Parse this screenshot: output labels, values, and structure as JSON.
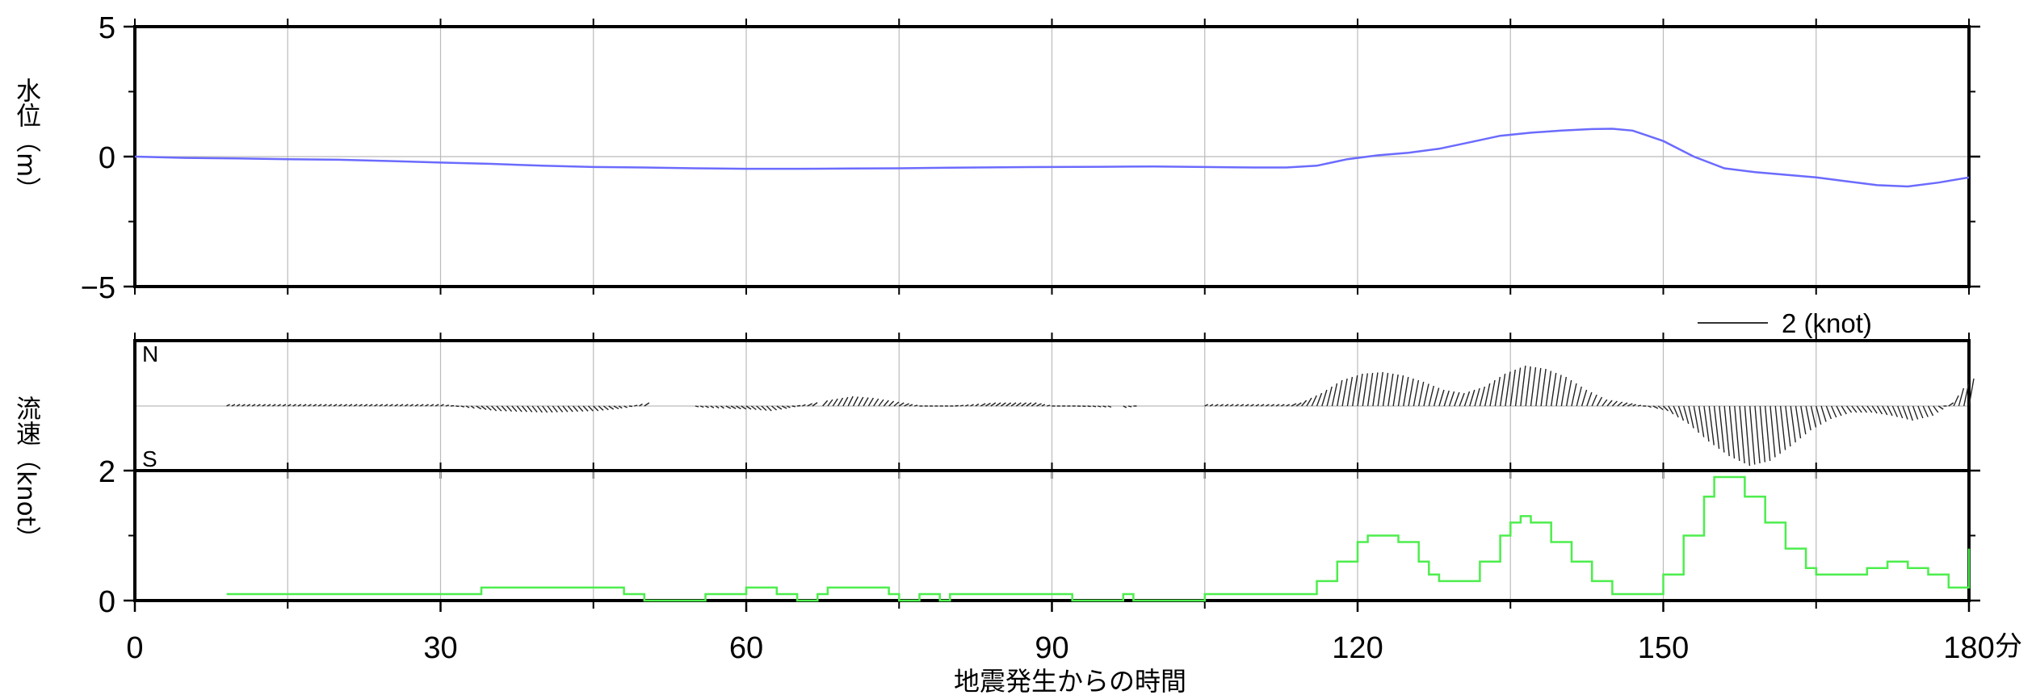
{
  "chart_data": [
    {
      "type": "line",
      "panel": "water-level",
      "ylabel": "水位（m）",
      "ylim": [
        -5,
        5
      ],
      "yticks": [
        -5,
        0,
        5
      ],
      "x": [
        0,
        5,
        10,
        15,
        20,
        25,
        30,
        35,
        40,
        45,
        50,
        55,
        60,
        65,
        70,
        75,
        80,
        85,
        90,
        95,
        100,
        105,
        110,
        113,
        116,
        119,
        122,
        125,
        128,
        131,
        134,
        137,
        140,
        143,
        145,
        147,
        150,
        153,
        156,
        159,
        162,
        165,
        168,
        171,
        174,
        177,
        180
      ],
      "values": [
        0.0,
        -0.05,
        -0.07,
        -0.1,
        -0.12,
        -0.17,
        -0.23,
        -0.28,
        -0.35,
        -0.4,
        -0.42,
        -0.45,
        -0.47,
        -0.47,
        -0.46,
        -0.45,
        -0.43,
        -0.41,
        -0.4,
        -0.39,
        -0.38,
        -0.4,
        -0.42,
        -0.42,
        -0.35,
        -0.1,
        0.05,
        0.15,
        0.3,
        0.55,
        0.8,
        0.92,
        1.0,
        1.06,
        1.07,
        1.0,
        0.6,
        0.0,
        -0.45,
        -0.6,
        -0.7,
        -0.8,
        -0.95,
        -1.1,
        -1.15,
        -1.0,
        -0.8
      ],
      "color": "#6b6bff"
    },
    {
      "type": "line",
      "panel": "current-vector",
      "ylabel": "流速（knot）",
      "north_label": "N",
      "south_label": "S",
      "scale_label": "2 (knot)",
      "x": [
        9,
        20,
        30,
        35,
        40,
        45,
        48,
        50,
        56,
        60,
        62,
        64,
        68,
        70,
        72,
        75,
        77,
        78,
        80,
        84,
        88,
        90,
        92,
        97,
        98,
        105,
        110,
        113,
        114,
        116,
        118,
        120,
        122,
        124,
        126,
        128,
        130,
        132,
        134,
        136,
        138,
        140,
        142,
        144,
        146,
        148,
        150,
        152,
        154,
        156,
        158,
        160,
        162,
        164,
        166,
        168,
        170,
        172,
        174,
        176,
        178,
        179,
        180
      ],
      "values": [
        0.05,
        0.05,
        0.05,
        -0.15,
        -0.2,
        -0.15,
        -0.05,
        0.1,
        -0.05,
        -0.1,
        -0.15,
        -0.05,
        0.2,
        0.3,
        0.25,
        0.1,
        0.0,
        0.0,
        0.0,
        0.1,
        0.1,
        0.0,
        0.0,
        -0.05,
        0.0,
        0.05,
        0.05,
        0.05,
        0.1,
        0.4,
        0.8,
        1.0,
        1.05,
        0.95,
        0.75,
        0.5,
        0.4,
        0.6,
        1.0,
        1.25,
        1.15,
        0.9,
        0.5,
        0.2,
        0.1,
        0.0,
        -0.15,
        -0.55,
        -1.1,
        -1.55,
        -1.85,
        -1.7,
        -1.25,
        -0.75,
        -0.4,
        -0.2,
        -0.2,
        -0.3,
        -0.45,
        -0.3,
        0.1,
        0.55,
        0.85
      ],
      "gaps_after": [
        9,
        48,
        67,
        94
      ],
      "color": "#222222"
    },
    {
      "type": "line",
      "panel": "current-speed",
      "ylim": [
        0,
        2
      ],
      "yticks": [
        0,
        2
      ],
      "x": [
        9,
        10,
        20,
        30,
        33,
        34,
        40,
        45,
        47,
        48,
        49,
        50,
        56,
        58,
        60,
        62,
        63,
        64,
        65,
        67,
        68,
        69,
        70,
        73,
        74,
        75,
        77,
        78,
        79,
        80,
        84,
        86,
        90,
        92,
        97,
        98,
        105,
        110,
        114,
        116,
        118,
        120,
        121,
        123,
        124,
        126,
        127,
        128,
        130,
        132,
        134,
        135,
        136,
        137,
        139,
        141,
        143,
        145,
        146,
        148,
        150,
        152,
        154,
        155,
        156,
        158,
        160,
        162,
        164,
        165,
        166,
        168,
        170,
        172,
        173,
        174,
        176,
        178,
        179,
        180
      ],
      "values": [
        0.1,
        0.1,
        0.1,
        0.1,
        0.1,
        0.2,
        0.2,
        0.2,
        0.2,
        0.1,
        0.1,
        0.0,
        0.1,
        0.1,
        0.2,
        0.2,
        0.1,
        0.1,
        0.0,
        0.1,
        0.2,
        0.2,
        0.2,
        0.2,
        0.1,
        0.0,
        0.1,
        0.1,
        0.0,
        0.1,
        0.1,
        0.1,
        0.1,
        0.0,
        0.1,
        0.0,
        0.1,
        0.1,
        0.1,
        0.3,
        0.6,
        0.9,
        1.0,
        1.0,
        0.9,
        0.6,
        0.4,
        0.3,
        0.3,
        0.6,
        1.0,
        1.2,
        1.3,
        1.2,
        0.9,
        0.6,
        0.3,
        0.1,
        0.1,
        0.1,
        0.4,
        1.0,
        1.6,
        1.9,
        1.9,
        1.6,
        1.2,
        0.8,
        0.5,
        0.4,
        0.4,
        0.4,
        0.5,
        0.6,
        0.6,
        0.5,
        0.4,
        0.2,
        0.2,
        0.8
      ],
      "color": "#4ded4d"
    }
  ],
  "x_axis": {
    "label": "地震発生からの時間",
    "unit": "分",
    "range": [
      0,
      180
    ],
    "ticks": [
      0,
      30,
      60,
      90,
      120,
      150,
      180
    ]
  }
}
